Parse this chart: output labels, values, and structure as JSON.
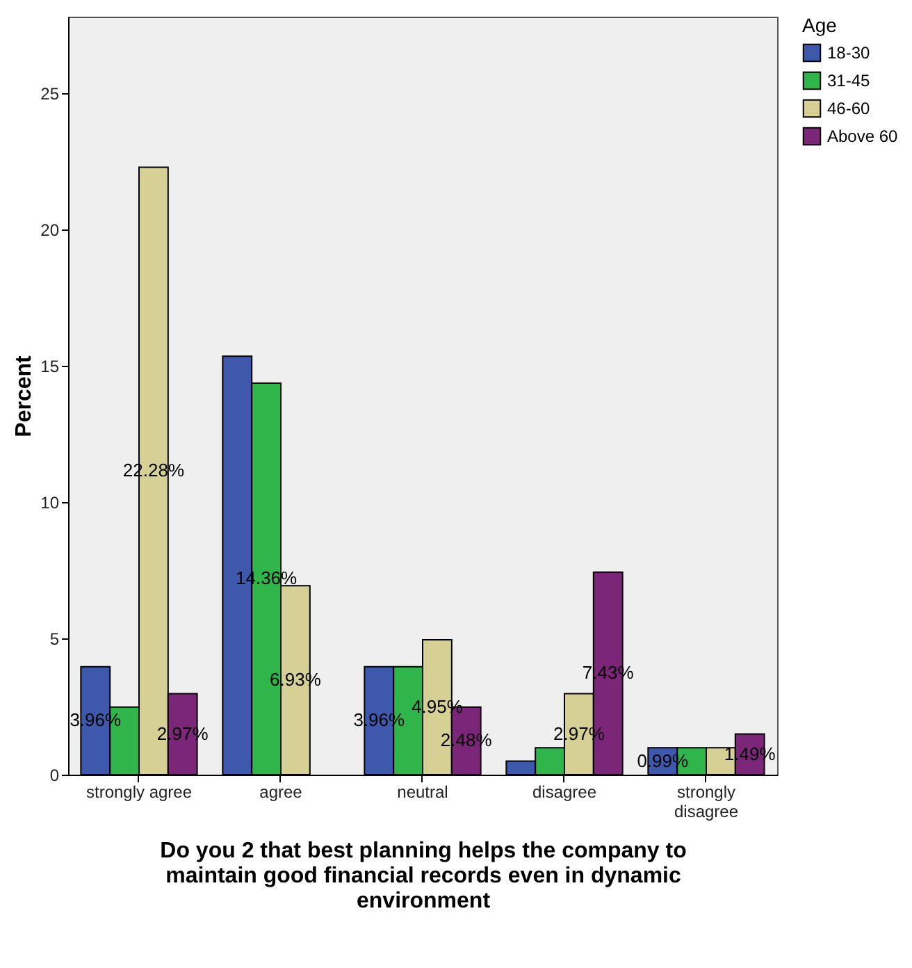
{
  "chart_data": {
    "type": "bar",
    "xlabel": "Do you 2 that best planning helps the company to maintain good financial records even in dynamic environment",
    "ylabel": "Percent",
    "legend_title": "Age",
    "legend": "top right",
    "grid": false,
    "categories": [
      "strongly agree",
      "agree",
      "neutral",
      "disagree",
      "strongly disagree"
    ],
    "ylim": [
      0,
      27.8
    ],
    "yticks": [
      0,
      5,
      10,
      15,
      20,
      25
    ],
    "series": [
      {
        "name": "18-30",
        "color": "#3e58ac",
        "values": [
          3.96,
          15.35,
          3.96,
          0.5,
          0.99
        ],
        "value_labels": [
          "3.96%",
          null,
          "3.96%",
          null,
          "0.99%"
        ]
      },
      {
        "name": "31-45",
        "color": "#2fb54a",
        "values": [
          2.48,
          14.36,
          3.96,
          0.99,
          0.99
        ],
        "value_labels": [
          null,
          "14.36%",
          null,
          null,
          null
        ]
      },
      {
        "name": "46-60",
        "color": "#d6d095",
        "values": [
          22.28,
          6.93,
          4.95,
          2.97,
          0.99
        ],
        "value_labels": [
          "22.28%",
          "6.93%",
          "4.95%",
          "2.97%",
          null
        ]
      },
      {
        "name": "Above 60",
        "color": "#7b2679",
        "values": [
          2.97,
          null,
          2.48,
          7.43,
          1.49
        ],
        "value_labels": [
          "2.97%",
          null,
          "2.48%",
          "7.43%",
          "1.49%"
        ]
      }
    ]
  }
}
